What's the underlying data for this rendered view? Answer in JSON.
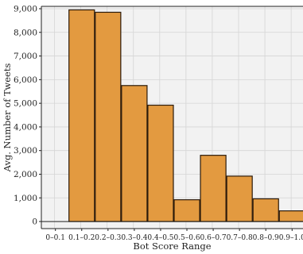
{
  "chart_data": {
    "type": "bar",
    "title": "",
    "xlabel": "Bot Score Range",
    "ylabel": "Avg. Number of Tweets",
    "categories": [
      "0–0.1",
      "0.1–0.2",
      "0.2–0.3",
      "0.3–0.4",
      "0.4–0.5",
      "0.5–0.6",
      "0.6–0.7",
      "0.7–0.8",
      "0.8–0.9",
      "0.9–1.0"
    ],
    "values": [
      0,
      8950,
      8850,
      5750,
      4920,
      920,
      2800,
      1920,
      960,
      450
    ],
    "ylim": [
      -300,
      9100
    ],
    "yticks": [
      0,
      1000,
      2000,
      3000,
      4000,
      5000,
      6000,
      7000,
      8000,
      9000
    ],
    "ytick_labels": [
      "0",
      "1,000",
      "2,000",
      "3,000",
      "4,000",
      "5,000",
      "6,000",
      "7,000",
      "8,000",
      "9,000"
    ],
    "grid": true,
    "colors": {
      "bar_fill": "#E39A40",
      "bar_stroke": "#2b1a0a",
      "plot_background": "#F2F2F2",
      "grid": "#D5D5D5"
    }
  }
}
